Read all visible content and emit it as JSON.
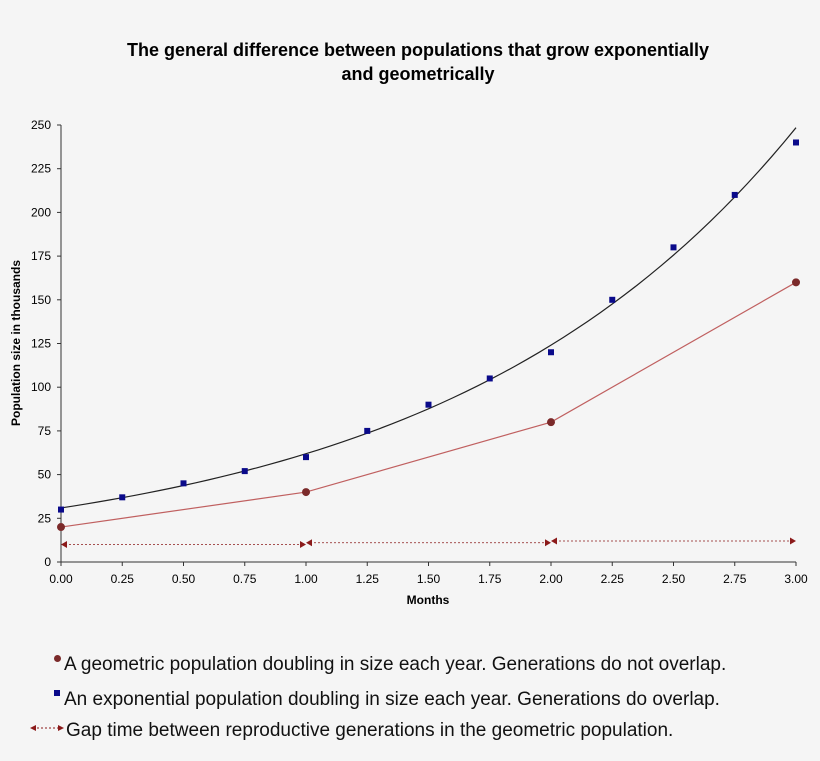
{
  "chart_data": {
    "type": "scatter",
    "title_line1": "The general difference between populations that grow exponentially",
    "title_line2": "and geometrically",
    "xlabel": "Months",
    "ylabel": "Population size in thousands",
    "xlim": [
      0,
      3
    ],
    "ylim": [
      0,
      250
    ],
    "xticks": [
      "0.00",
      "0.25",
      "0.50",
      "0.75",
      "1.00",
      "1.25",
      "1.50",
      "1.75",
      "2.00",
      "2.25",
      "2.50",
      "2.75",
      "3.00"
    ],
    "yticks": [
      "0",
      "25",
      "50",
      "75",
      "100",
      "125",
      "150",
      "175",
      "200",
      "225",
      "250"
    ],
    "grid": false,
    "series": [
      {
        "key": "geometric",
        "marker": "circle",
        "color": "#7b2a2a",
        "line_color": "#c06060",
        "x": [
          0,
          1,
          2,
          3
        ],
        "y": [
          20,
          40,
          80,
          160
        ]
      },
      {
        "key": "exponential",
        "marker": "square",
        "color": "#0a0a8a",
        "trend_color": "#222222",
        "x": [
          0,
          0.25,
          0.5,
          0.75,
          1,
          1.25,
          1.5,
          1.75,
          2,
          2.25,
          2.5,
          2.75,
          3
        ],
        "y": [
          30,
          37,
          45,
          52,
          60,
          75,
          90,
          105,
          120,
          150,
          180,
          210,
          240
        ],
        "trendline": "exponential"
      },
      {
        "key": "gap",
        "marker": "arrow",
        "color": "#8b1a1a",
        "segments": [
          {
            "x": [
              0,
              1
            ],
            "y": 10
          },
          {
            "x": [
              1,
              2
            ],
            "y": 11
          },
          {
            "x": [
              2,
              3
            ],
            "y": 12
          }
        ]
      }
    ]
  },
  "legend": [
    {
      "marker": "circle",
      "color": "#7b2a2a",
      "text": "A geometric population doubling in size each year. Generations do not overlap."
    },
    {
      "marker": "square",
      "color": "#0a0a8a",
      "text": "An exponential population doubling in size each year. Generations do overlap."
    },
    {
      "marker": "arrow",
      "color": "#8b1a1a",
      "text": "Gap time between reproductive generations in the geometric population."
    }
  ]
}
